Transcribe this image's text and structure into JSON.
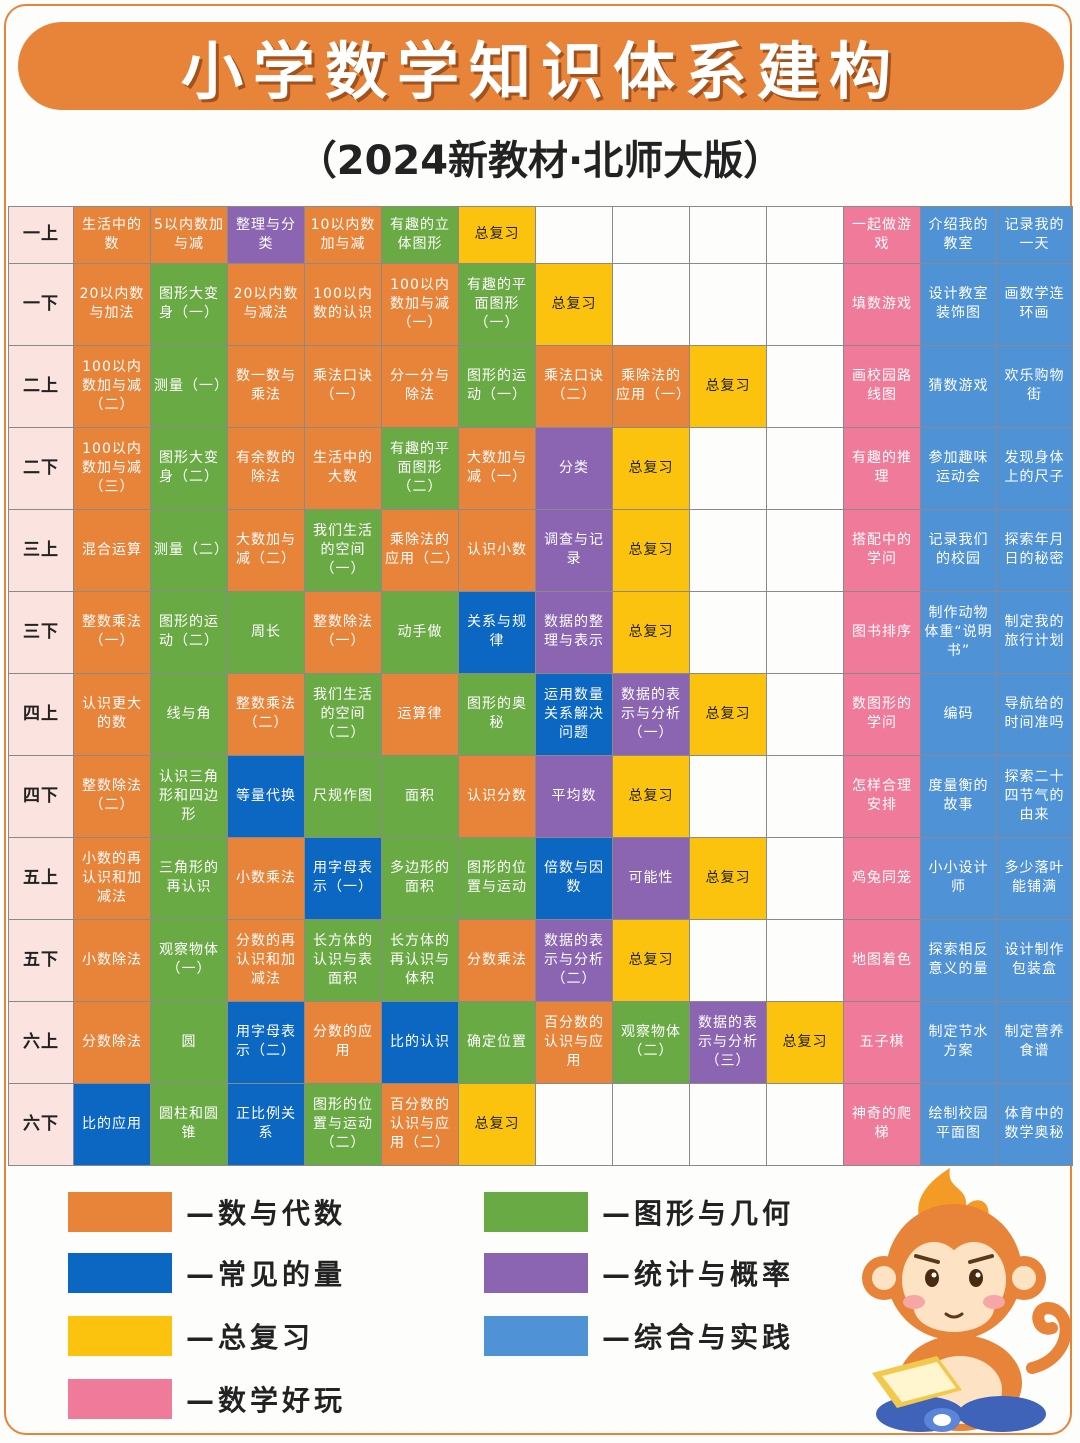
{
  "title": "小学数学知识体系建构",
  "subtitle": "（2024新教材·北师大版）",
  "colors": {
    "num": "#e8833a",
    "geo": "#6aaa45",
    "qty": "#0b67c2",
    "rev": "#fbc20e",
    "stat": "#8b64b2",
    "prac": "#4f93d6",
    "fun": "#f07a9a"
  },
  "rows": [
    {
      "grade": "一上",
      "cells": [
        {
          "t": "生活中的数",
          "c": "num"
        },
        {
          "t": "5以内数加与减",
          "c": "num"
        },
        {
          "t": "整理与分类",
          "c": "stat"
        },
        {
          "t": "10以内数加与减",
          "c": "num"
        },
        {
          "t": "有趣的立体图形",
          "c": "geo"
        },
        {
          "t": "总复习",
          "c": "rev"
        },
        {
          "t": "",
          "c": "empty"
        },
        {
          "t": "",
          "c": "empty"
        },
        {
          "t": "",
          "c": "empty"
        },
        {
          "t": "",
          "c": "empty"
        },
        {
          "t": "一起做游戏",
          "c": "fun"
        },
        {
          "t": "介绍我的教室",
          "c": "prac"
        },
        {
          "t": "记录我的一天",
          "c": "prac"
        }
      ]
    },
    {
      "grade": "一下",
      "cells": [
        {
          "t": "20以内数与加法",
          "c": "num"
        },
        {
          "t": "图形大变身（一）",
          "c": "geo"
        },
        {
          "t": "20以内数与减法",
          "c": "num"
        },
        {
          "t": "100以内数的认识",
          "c": "num"
        },
        {
          "t": "100以内数加与减（一）",
          "c": "num"
        },
        {
          "t": "有趣的平面图形（一）",
          "c": "geo"
        },
        {
          "t": "总复习",
          "c": "rev"
        },
        {
          "t": "",
          "c": "empty"
        },
        {
          "t": "",
          "c": "empty"
        },
        {
          "t": "",
          "c": "empty"
        },
        {
          "t": "填数游戏",
          "c": "fun"
        },
        {
          "t": "设计教室装饰图",
          "c": "prac"
        },
        {
          "t": "画数学连环画",
          "c": "prac"
        }
      ]
    },
    {
      "grade": "二上",
      "cells": [
        {
          "t": "100以内数加与减（二）",
          "c": "num"
        },
        {
          "t": "测量（一）",
          "c": "geo"
        },
        {
          "t": "数一数与乘法",
          "c": "num"
        },
        {
          "t": "乘法口诀（一）",
          "c": "num"
        },
        {
          "t": "分一分与除法",
          "c": "num"
        },
        {
          "t": "图形的运动（一）",
          "c": "geo"
        },
        {
          "t": "乘法口诀（二）",
          "c": "num"
        },
        {
          "t": "乘除法的应用（一）",
          "c": "num"
        },
        {
          "t": "总复习",
          "c": "rev"
        },
        {
          "t": "",
          "c": "empty"
        },
        {
          "t": "画校园路线图",
          "c": "fun"
        },
        {
          "t": "猜数游戏",
          "c": "prac"
        },
        {
          "t": "欢乐购物街",
          "c": "prac"
        }
      ]
    },
    {
      "grade": "二下",
      "cells": [
        {
          "t": "100以内数加与减（三）",
          "c": "num"
        },
        {
          "t": "图形大变身（二）",
          "c": "geo"
        },
        {
          "t": "有余数的除法",
          "c": "num"
        },
        {
          "t": "生活中的大数",
          "c": "num"
        },
        {
          "t": "有趣的平面图形（二）",
          "c": "geo"
        },
        {
          "t": "大数加与减（一）",
          "c": "num"
        },
        {
          "t": "分类",
          "c": "stat"
        },
        {
          "t": "总复习",
          "c": "rev"
        },
        {
          "t": "",
          "c": "empty"
        },
        {
          "t": "",
          "c": "empty"
        },
        {
          "t": "有趣的推理",
          "c": "fun"
        },
        {
          "t": "参加趣味运动会",
          "c": "prac"
        },
        {
          "t": "发现身体上的尺子",
          "c": "prac"
        }
      ]
    },
    {
      "grade": "三上",
      "cells": [
        {
          "t": "混合运算",
          "c": "num"
        },
        {
          "t": "测量（二）",
          "c": "geo"
        },
        {
          "t": "大数加与减（二）",
          "c": "num"
        },
        {
          "t": "我们生活的空间（一）",
          "c": "geo"
        },
        {
          "t": "乘除法的应用（二）",
          "c": "num"
        },
        {
          "t": "认识小数",
          "c": "num"
        },
        {
          "t": "调查与记录",
          "c": "stat"
        },
        {
          "t": "总复习",
          "c": "rev"
        },
        {
          "t": "",
          "c": "empty"
        },
        {
          "t": "",
          "c": "empty"
        },
        {
          "t": "搭配中的学问",
          "c": "fun"
        },
        {
          "t": "记录我们的校园",
          "c": "prac"
        },
        {
          "t": "探索年月日的秘密",
          "c": "prac"
        }
      ]
    },
    {
      "grade": "三下",
      "cells": [
        {
          "t": "整数乘法（一）",
          "c": "num"
        },
        {
          "t": "图形的运动（二）",
          "c": "geo"
        },
        {
          "t": "周长",
          "c": "geo"
        },
        {
          "t": "整数除法（一）",
          "c": "num"
        },
        {
          "t": "动手做",
          "c": "geo"
        },
        {
          "t": "关系与规律",
          "c": "qty"
        },
        {
          "t": "数据的整理与表示",
          "c": "stat"
        },
        {
          "t": "总复习",
          "c": "rev"
        },
        {
          "t": "",
          "c": "empty"
        },
        {
          "t": "",
          "c": "empty"
        },
        {
          "t": "图书排序",
          "c": "fun"
        },
        {
          "t": "制作动物体重“说明书”",
          "c": "prac"
        },
        {
          "t": "制定我的旅行计划",
          "c": "prac"
        }
      ]
    },
    {
      "grade": "四上",
      "cells": [
        {
          "t": "认识更大的数",
          "c": "num"
        },
        {
          "t": "线与角",
          "c": "geo"
        },
        {
          "t": "整数乘法（二）",
          "c": "num"
        },
        {
          "t": "我们生活的空间（二）",
          "c": "geo"
        },
        {
          "t": "运算律",
          "c": "num"
        },
        {
          "t": "图形的奥秘",
          "c": "geo"
        },
        {
          "t": "运用数量关系解决问题",
          "c": "qty"
        },
        {
          "t": "数据的表示与分析（一）",
          "c": "stat"
        },
        {
          "t": "总复习",
          "c": "rev"
        },
        {
          "t": "",
          "c": "empty"
        },
        {
          "t": "数图形的学问",
          "c": "fun"
        },
        {
          "t": "编码",
          "c": "prac"
        },
        {
          "t": "导航给的时间准吗",
          "c": "prac"
        }
      ]
    },
    {
      "grade": "四下",
      "cells": [
        {
          "t": "整数除法（二）",
          "c": "num"
        },
        {
          "t": "认识三角形和四边形",
          "c": "geo"
        },
        {
          "t": "等量代换",
          "c": "qty"
        },
        {
          "t": "尺规作图",
          "c": "geo"
        },
        {
          "t": "面积",
          "c": "geo"
        },
        {
          "t": "认识分数",
          "c": "num"
        },
        {
          "t": "平均数",
          "c": "stat"
        },
        {
          "t": "总复习",
          "c": "rev"
        },
        {
          "t": "",
          "c": "empty"
        },
        {
          "t": "",
          "c": "empty"
        },
        {
          "t": "怎样合理安排",
          "c": "fun"
        },
        {
          "t": "度量衡的故事",
          "c": "prac"
        },
        {
          "t": "探索二十四节气的由来",
          "c": "prac"
        }
      ]
    },
    {
      "grade": "五上",
      "cells": [
        {
          "t": "小数的再认识和加减法",
          "c": "num"
        },
        {
          "t": "三角形的再认识",
          "c": "geo"
        },
        {
          "t": "小数乘法",
          "c": "num"
        },
        {
          "t": "用字母表示（一）",
          "c": "qty"
        },
        {
          "t": "多边形的面积",
          "c": "geo"
        },
        {
          "t": "图形的位置与运动",
          "c": "geo"
        },
        {
          "t": "倍数与因数",
          "c": "qty"
        },
        {
          "t": "可能性",
          "c": "stat"
        },
        {
          "t": "总复习",
          "c": "rev"
        },
        {
          "t": "",
          "c": "empty"
        },
        {
          "t": "鸡兔同笼",
          "c": "fun"
        },
        {
          "t": "小小设计师",
          "c": "prac"
        },
        {
          "t": "多少落叶能铺满",
          "c": "prac"
        }
      ]
    },
    {
      "grade": "五下",
      "cells": [
        {
          "t": "小数除法",
          "c": "num"
        },
        {
          "t": "观察物体（一）",
          "c": "geo"
        },
        {
          "t": "分数的再认识和加减法",
          "c": "num"
        },
        {
          "t": "长方体的认识与表面积",
          "c": "geo"
        },
        {
          "t": "长方体的再认识与体积",
          "c": "geo"
        },
        {
          "t": "分数乘法",
          "c": "num"
        },
        {
          "t": "数据的表示与分析（二）",
          "c": "stat"
        },
        {
          "t": "总复习",
          "c": "rev"
        },
        {
          "t": "",
          "c": "empty"
        },
        {
          "t": "",
          "c": "empty"
        },
        {
          "t": "地图着色",
          "c": "fun"
        },
        {
          "t": "探索相反意义的量",
          "c": "prac"
        },
        {
          "t": "设计制作包装盒",
          "c": "prac"
        }
      ]
    },
    {
      "grade": "六上",
      "cells": [
        {
          "t": "分数除法",
          "c": "num"
        },
        {
          "t": "圆",
          "c": "geo"
        },
        {
          "t": "用字母表示（二）",
          "c": "qty"
        },
        {
          "t": "分数的应用",
          "c": "num"
        },
        {
          "t": "比的认识",
          "c": "qty"
        },
        {
          "t": "确定位置",
          "c": "geo"
        },
        {
          "t": "百分数的认识与应用",
          "c": "num"
        },
        {
          "t": "观察物体（二）",
          "c": "geo"
        },
        {
          "t": "数据的表示与分析（三）",
          "c": "stat"
        },
        {
          "t": "总复习",
          "c": "rev"
        },
        {
          "t": "五子棋",
          "c": "fun"
        },
        {
          "t": "制定节水方案",
          "c": "prac"
        },
        {
          "t": "制定营养食谱",
          "c": "prac"
        }
      ]
    },
    {
      "grade": "六下",
      "cells": [
        {
          "t": "比的应用",
          "c": "qty"
        },
        {
          "t": "圆柱和圆锥",
          "c": "geo"
        },
        {
          "t": "正比例关系",
          "c": "qty"
        },
        {
          "t": "图形的位置与运动（二）",
          "c": "geo"
        },
        {
          "t": "百分数的认识与应用（二）",
          "c": "num"
        },
        {
          "t": "总复习",
          "c": "rev"
        },
        {
          "t": "",
          "c": "empty"
        },
        {
          "t": "",
          "c": "empty"
        },
        {
          "t": "",
          "c": "empty"
        },
        {
          "t": "",
          "c": "empty"
        },
        {
          "t": "神奇的爬梯",
          "c": "fun"
        },
        {
          "t": "绘制校园平面图",
          "c": "prac"
        },
        {
          "t": "体育中的数学奥秘",
          "c": "prac"
        }
      ]
    }
  ],
  "legend": [
    {
      "label": "—数与代数",
      "c": "num"
    },
    {
      "label": "—图形与几何",
      "c": "geo"
    },
    {
      "label": "—常见的量",
      "c": "qty"
    },
    {
      "label": "—统计与概率",
      "c": "stat"
    },
    {
      "label": "—总复习",
      "c": "rev"
    },
    {
      "label": "—综合与实践",
      "c": "prac"
    },
    {
      "label": "—数学好玩",
      "c": "fun"
    }
  ]
}
